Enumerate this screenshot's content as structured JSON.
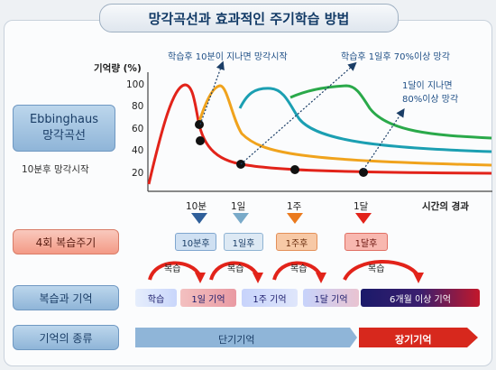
{
  "title": "망각곡선과 효과적인 주기학습 방법",
  "side": {
    "ebbinghaus": "Ebbinghaus\n망각곡선",
    "forget_start": "10분후 망각시작",
    "review_cycle": "4회 복습주기",
    "review_memory": "복습과 기억",
    "memory_types": "기억의 종류"
  },
  "chart": {
    "ylabel": "기억량 (%)",
    "xlabel": "시간의 경과",
    "yticks": [
      "100",
      "80",
      "60",
      "40",
      "20"
    ],
    "annotations": {
      "a1": "학습후 10분이 지나면 망각시작",
      "a2": "학습후 1일후 70%이상 망각",
      "a3_line1": "1달이 지나면",
      "a3_line2": "80%이상 망각"
    },
    "time_labels": [
      "10분",
      "1일",
      "1주",
      "1달"
    ]
  },
  "review_tags": [
    "10분후",
    "1일후",
    "1주후",
    "1달후"
  ],
  "review_word": "복습",
  "memory_row": [
    "학습",
    "1일 기억",
    "1주 기억",
    "1달 기억",
    "6개월 이상 기억"
  ],
  "memory_types": {
    "short": "단기기억",
    "long": "장기기억"
  },
  "colors": {
    "red": "#e2231a",
    "orange": "#f0a31d",
    "teal": "#1b9fb2",
    "green": "#2aa94a",
    "navy": "#1a1a6a"
  }
}
